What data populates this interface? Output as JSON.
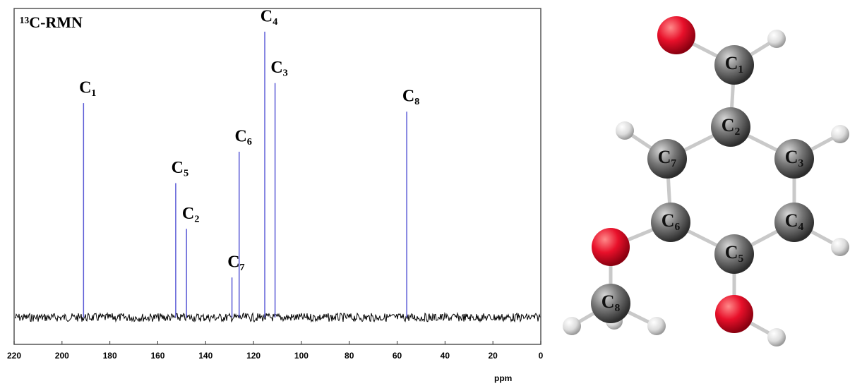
{
  "chart_data": {
    "type": "stem",
    "title": "¹³C-RMN",
    "x_label": "ppm",
    "x": [
      191,
      152.5,
      148,
      129,
      126,
      115.3,
      111,
      56
    ],
    "values": [
      75,
      47,
      31,
      14,
      58,
      100,
      82,
      72
    ],
    "labels": [
      "C₁",
      "C₅",
      "C₂",
      "C₇",
      "C₆",
      "C₄",
      "C₃",
      "C₈"
    ],
    "color": "#5b5bd6",
    "xlim": [
      220,
      0
    ],
    "xticks": [
      220,
      200,
      180,
      160,
      140,
      120,
      100,
      80,
      60,
      40,
      20,
      0
    ],
    "ylim": [
      -9.4,
      108.1
    ]
  },
  "molecule": {
    "atoms": [
      "C₁",
      "C₂",
      "C₃",
      "C₄",
      "C₅",
      "C₆",
      "C₇",
      "C₈"
    ]
  }
}
